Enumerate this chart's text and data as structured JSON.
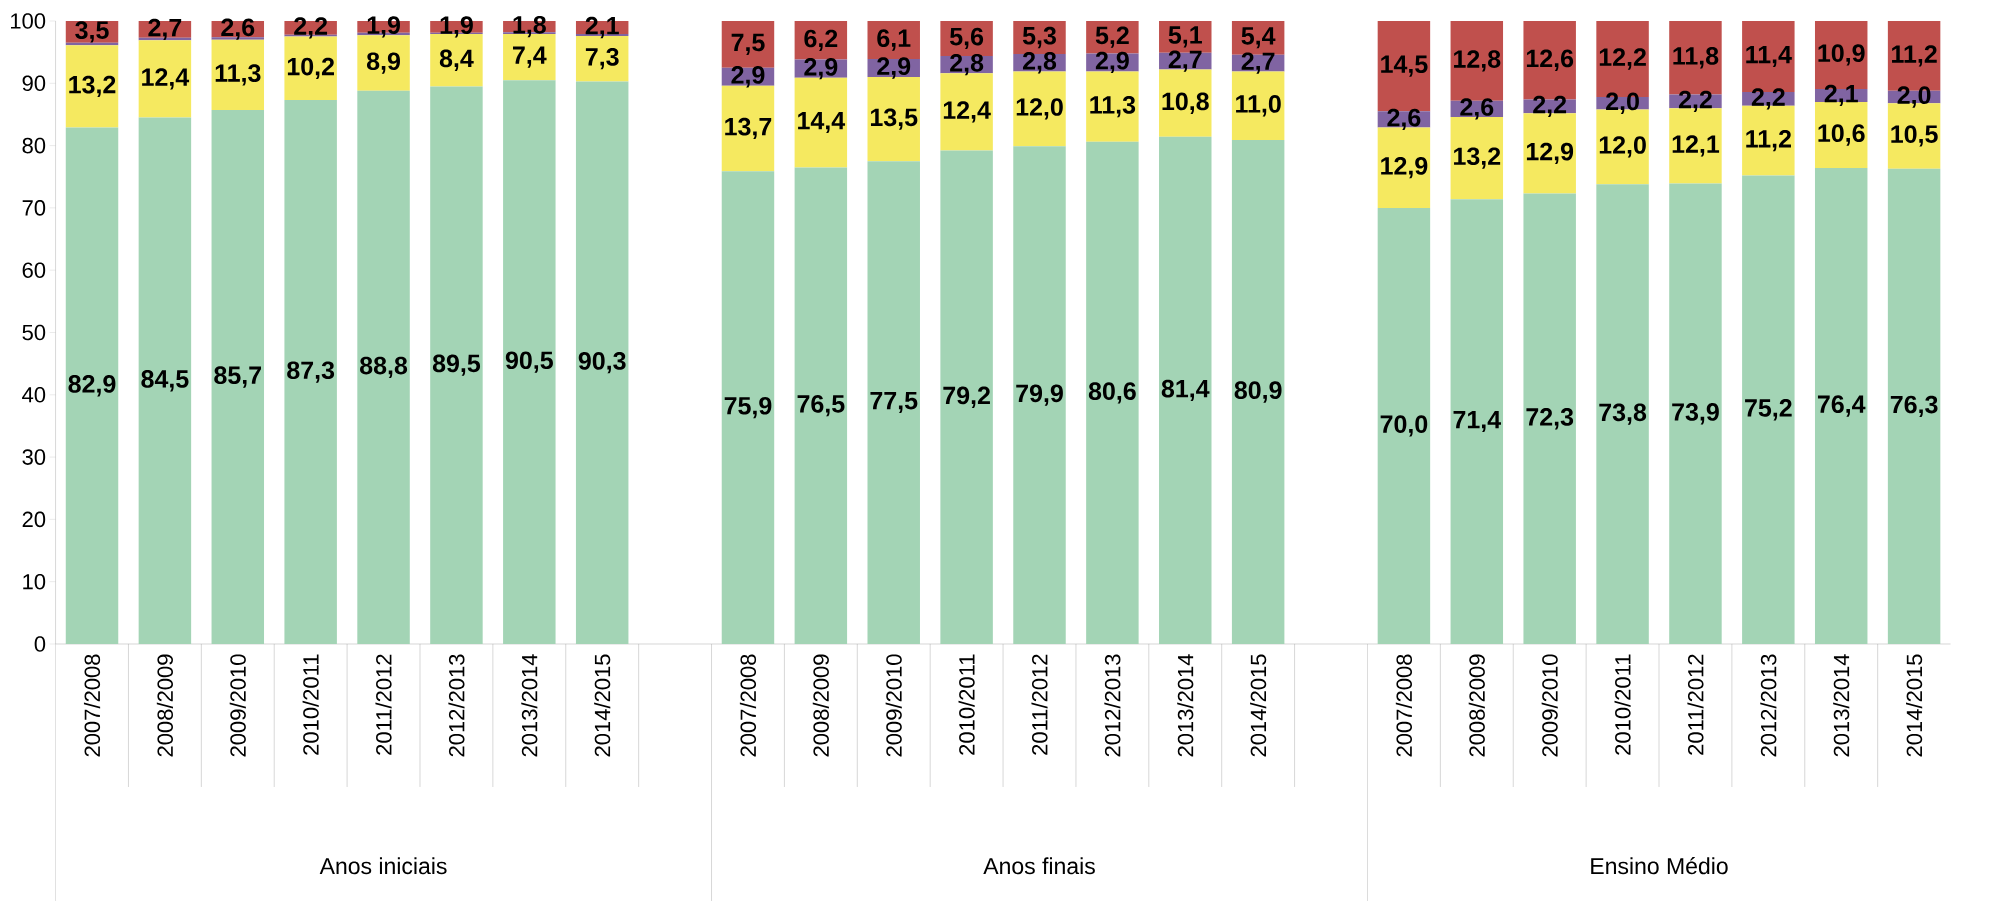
{
  "chart_data": {
    "type": "bar",
    "stacked": true,
    "categories": [
      "2007/2008",
      "2008/2009",
      "2009/2010",
      "2010/2011",
      "2011/2012",
      "2012/2013",
      "2013/2014",
      "2014/2015",
      null,
      "2007/2008",
      "2008/2009",
      "2009/2010",
      "2010/2011",
      "2011/2012",
      "2012/2013",
      "2013/2014",
      "2014/2015",
      null,
      "2007/2008",
      "2008/2009",
      "2009/2010",
      "2010/2011",
      "2011/2012",
      "2012/2013",
      "2013/2014",
      "2014/2015"
    ],
    "series": [
      {
        "color": "#a3d4b5",
        "values": [
          82.9,
          84.5,
          85.7,
          87.3,
          88.8,
          89.5,
          90.5,
          90.3,
          null,
          75.9,
          76.5,
          77.5,
          79.2,
          79.9,
          80.6,
          81.4,
          80.9,
          null,
          70.0,
          71.4,
          72.3,
          73.8,
          73.9,
          75.2,
          76.4,
          76.3
        ],
        "value_labels": [
          "82,9",
          "84,5",
          "85,7",
          "87,3",
          "88,8",
          "89,5",
          "90,5",
          "90,3",
          null,
          "75,9",
          "76,5",
          "77,5",
          "79,2",
          "79,9",
          "80,6",
          "81,4",
          "80,9",
          null,
          "70,0",
          "71,4",
          "72,3",
          "73,8",
          "73,9",
          "75,2",
          "76,4",
          "76,3"
        ]
      },
      {
        "color": "#f5e960",
        "values": [
          13.2,
          12.4,
          11.3,
          10.2,
          8.9,
          8.4,
          7.4,
          7.3,
          null,
          13.7,
          14.4,
          13.5,
          12.4,
          12.0,
          11.3,
          10.8,
          11.0,
          null,
          12.9,
          13.2,
          12.9,
          12.0,
          12.1,
          11.2,
          10.6,
          10.5
        ],
        "value_labels": [
          "13,2",
          "12,4",
          "11,3",
          "10,2",
          "8,9",
          "8,4",
          "7,4",
          "7,3",
          null,
          "13,7",
          "14,4",
          "13,5",
          "12,4",
          "12,0",
          "11,3",
          "10,8",
          "11,0",
          null,
          "12,9",
          "13,2",
          "12,9",
          "12,0",
          "12,1",
          "11,2",
          "10,6",
          "10,5"
        ]
      },
      {
        "color": "#8064a2",
        "values": [
          0.4,
          0.4,
          0.4,
          0.3,
          0.4,
          0.2,
          0.3,
          0.3,
          null,
          2.9,
          2.9,
          2.9,
          2.8,
          2.8,
          2.9,
          2.7,
          2.7,
          null,
          2.6,
          2.6,
          2.2,
          2.0,
          2.2,
          2.2,
          2.1,
          2.0
        ],
        "value_labels": [
          null,
          null,
          null,
          null,
          null,
          null,
          null,
          null,
          null,
          "2,9",
          "2,9",
          "2,9",
          "2,8",
          "2,8",
          "2,9",
          "2,7",
          "2,7",
          null,
          "2,6",
          "2,6",
          "2,2",
          "2,0",
          "2,2",
          "2,2",
          "2,1",
          "2,0"
        ]
      },
      {
        "color": "#c0504d",
        "values": [
          3.5,
          2.7,
          2.6,
          2.2,
          1.9,
          1.9,
          1.8,
          2.1,
          null,
          7.5,
          6.2,
          6.1,
          5.6,
          5.3,
          5.2,
          5.1,
          5.4,
          null,
          14.5,
          12.8,
          12.6,
          12.2,
          11.8,
          11.4,
          10.9,
          11.2
        ],
        "value_labels": [
          "3,5",
          "2,7",
          "2,6",
          "2,2",
          "1,9",
          "1,9",
          "1,8",
          "2,1",
          null,
          "7,5",
          "6,2",
          "6,1",
          "5,6",
          "5,3",
          "5,2",
          "5,1",
          "5,4",
          null,
          "14,5",
          "12,8",
          "12,6",
          "12,2",
          "11,8",
          "11,4",
          "10,9",
          "11,2"
        ]
      }
    ],
    "ylim": [
      0,
      100
    ],
    "yticks": [
      0,
      10,
      20,
      30,
      40,
      50,
      60,
      70,
      80,
      90,
      100
    ],
    "annotations": [
      "Anos iniciais",
      "Anos finais",
      "Ensino Médio"
    ]
  }
}
